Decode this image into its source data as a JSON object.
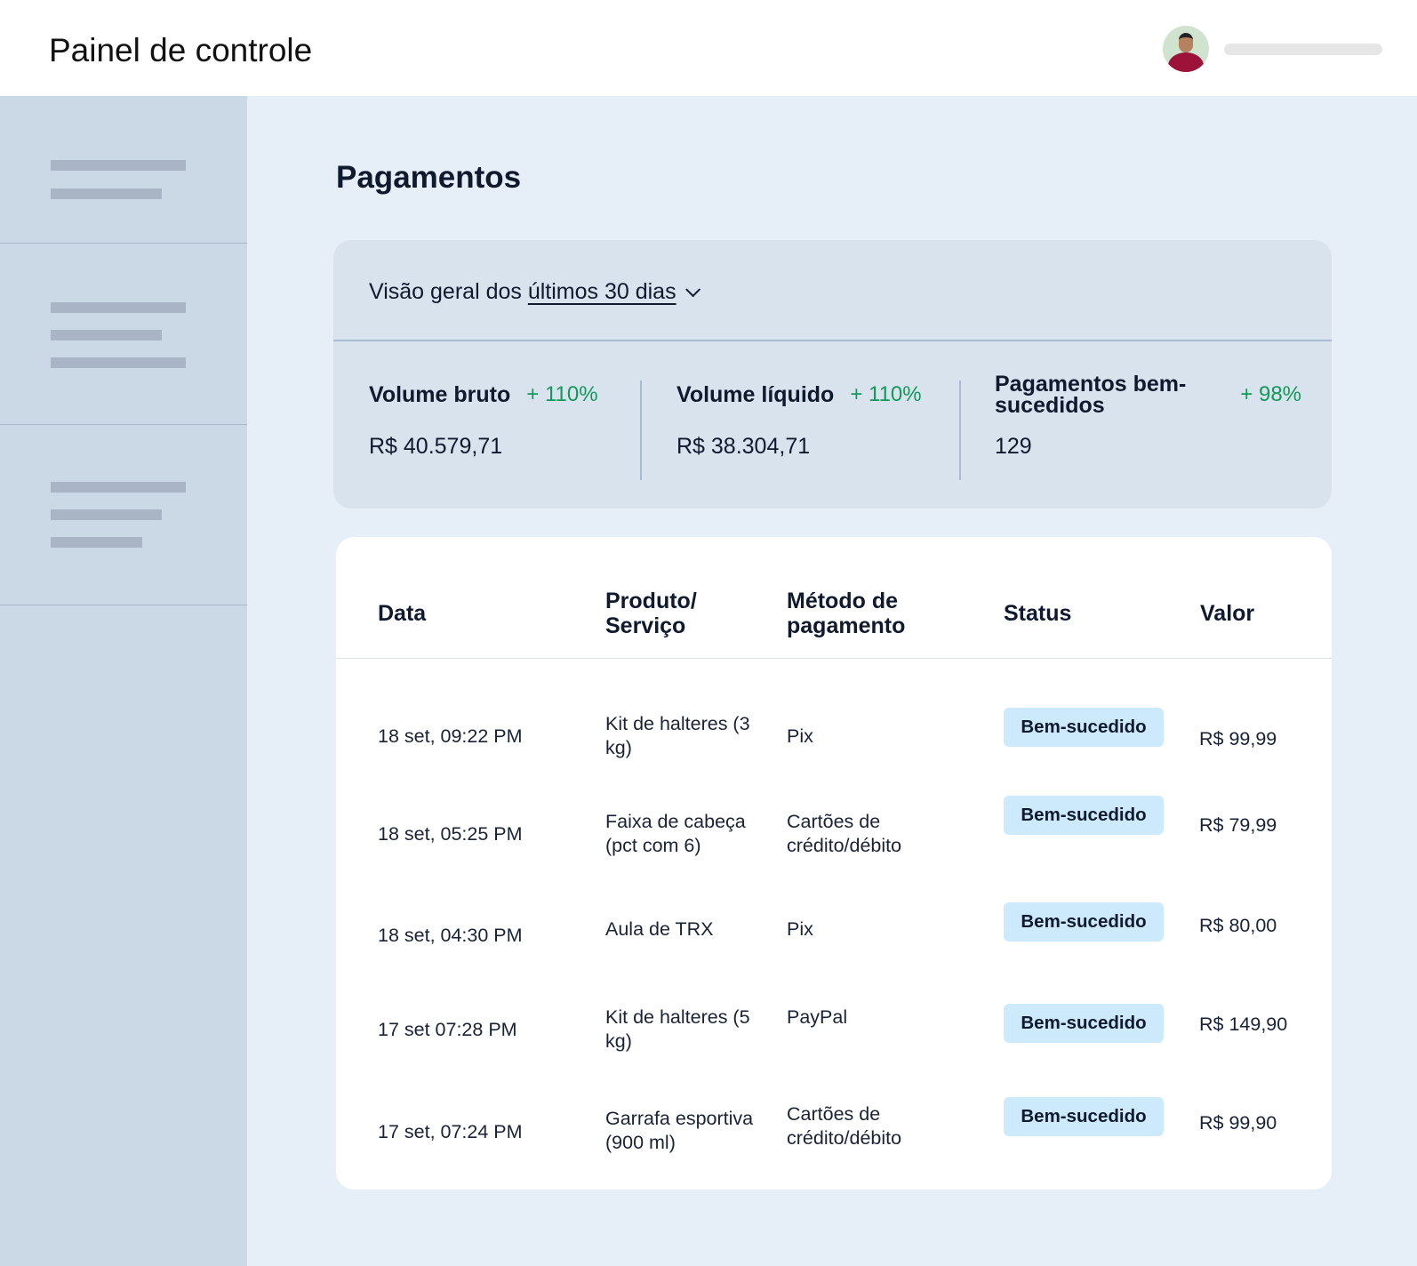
{
  "header": {
    "title": "Painel de controle",
    "avatar_icon": "user-avatar"
  },
  "page": {
    "title": "Pagamentos"
  },
  "summary": {
    "period_prefix": "Visão geral dos",
    "period_link": "últimos 30 dias",
    "metrics": [
      {
        "label": "Volume bruto",
        "change": "+ 110%",
        "value": "R$ 40.579,71"
      },
      {
        "label": "Volume líquido",
        "change": "+ 110%",
        "value": "R$ 38.304,71"
      },
      {
        "label": "Pagamentos bem-sucedidos",
        "change": "+ 98%",
        "value": "129"
      }
    ]
  },
  "table": {
    "headers": [
      "Data",
      "Produto/ Serviço",
      "Método de pagamento",
      "Status",
      "Valor"
    ],
    "rows": [
      {
        "date": "18 set, 09:22 PM",
        "product": "Kit de halteres (3 kg)",
        "method": "Pix",
        "status": "Bem-sucedido",
        "amount": "R$ 99,99"
      },
      {
        "date": "18 set, 05:25 PM",
        "product": "Faixa de cabeça (pct com 6)",
        "method": "Cartões de crédito/débito",
        "status": "Bem-sucedido",
        "amount": "R$ 79,99"
      },
      {
        "date": "18 set, 04:30 PM",
        "product": "Aula de TRX",
        "method": "Pix",
        "status": "Bem-sucedido",
        "amount": "R$ 80,00"
      },
      {
        "date": "17 set 07:28 PM",
        "product": "Kit de halteres (5 kg)",
        "method": "PayPal",
        "status": "Bem-sucedido",
        "amount": "R$ 149,90"
      },
      {
        "date": "17 set, 07:24 PM",
        "product": "Garrafa esportiva (900 ml)",
        "method": "Cartões de crédito/débito",
        "status": "Bem-sucedido",
        "amount": "R$ 99,90"
      }
    ]
  },
  "colors": {
    "positive": "#14985a",
    "badge": "#cdeafd",
    "sidebar": "#cbd9e6",
    "background": "#e6eef7"
  }
}
